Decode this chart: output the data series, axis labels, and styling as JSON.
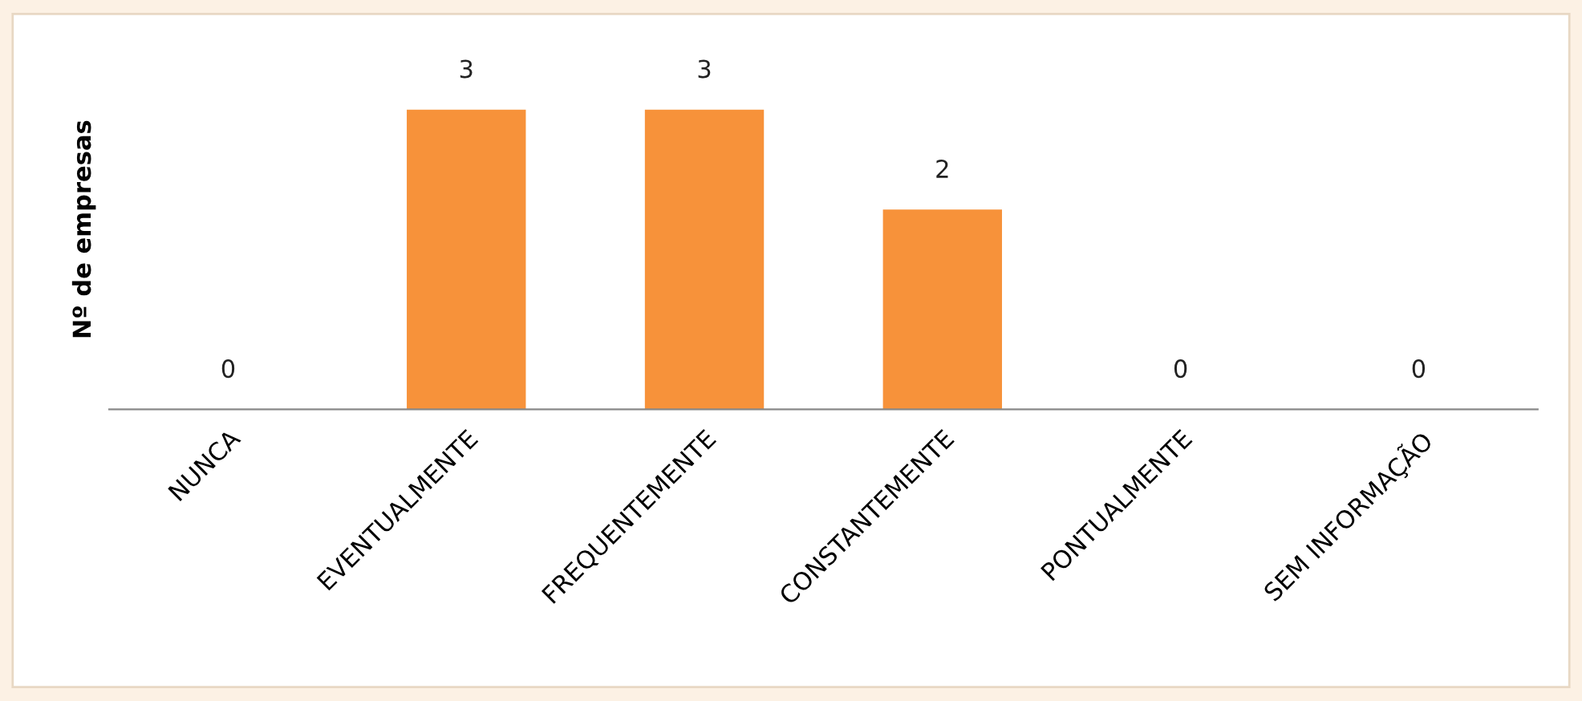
{
  "chart_data": {
    "type": "bar",
    "ylabel": "Nº de empresas",
    "categories": [
      "NUNCA",
      "EVENTUALMENTE",
      "FREQUENTEMENTE",
      "CONSTANTEMENTE",
      "PONTUALMENTE",
      "SEM INFORMAÇÃO"
    ],
    "values": [
      0,
      3,
      3,
      2,
      0,
      0
    ],
    "color": "#f7923a",
    "data_labels": true
  }
}
